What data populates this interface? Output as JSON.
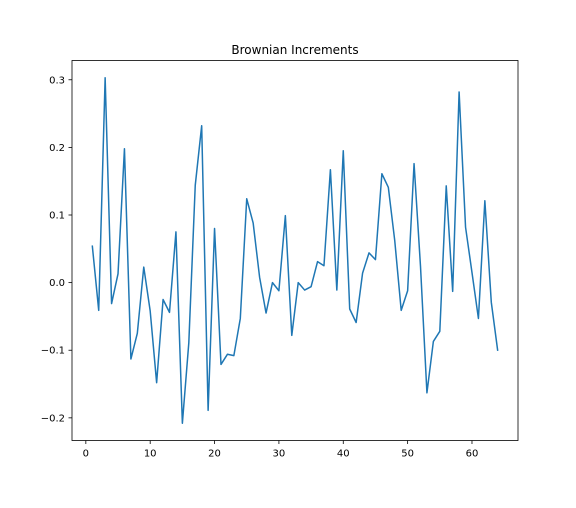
{
  "chart_data": {
    "type": "line",
    "title": "Brownian Increments",
    "xlabel": "",
    "ylabel": "",
    "xlim": [
      -2.15,
      67.15
    ],
    "ylim": [
      -0.2335,
      0.3285
    ],
    "xticks": [
      0,
      10,
      20,
      30,
      40,
      50,
      60
    ],
    "xtick_labels": [
      "0",
      "10",
      "20",
      "30",
      "40",
      "50",
      "60"
    ],
    "yticks": [
      -0.2,
      -0.1,
      0.0,
      0.1,
      0.2,
      0.3
    ],
    "ytick_labels": [
      "−0.2",
      "−0.1",
      "0.0",
      "0.1",
      "0.2",
      "0.3"
    ],
    "grid": false,
    "series": [
      {
        "color": "#1f77b4",
        "x": [
          1,
          2,
          3,
          4,
          5,
          6,
          7,
          8,
          9,
          10,
          11,
          12,
          13,
          14,
          15,
          16,
          17,
          18,
          19,
          20,
          21,
          22,
          23,
          24,
          25,
          26,
          27,
          28,
          29,
          30,
          31,
          32,
          33,
          34,
          35,
          36,
          37,
          38,
          39,
          40,
          41,
          42,
          43,
          44,
          45,
          46,
          47,
          48,
          49,
          50,
          51,
          52,
          53,
          54,
          55,
          56,
          57,
          58,
          59,
          60,
          61,
          62,
          63,
          64
        ],
        "values": [
          0.055,
          -0.041,
          0.303,
          -0.031,
          0.013,
          0.198,
          -0.113,
          -0.075,
          0.023,
          -0.042,
          -0.148,
          -0.025,
          -0.044,
          0.075,
          -0.208,
          -0.089,
          0.144,
          0.232,
          -0.189,
          0.08,
          -0.121,
          -0.106,
          -0.108,
          -0.053,
          0.124,
          0.088,
          0.008,
          -0.045,
          0.0,
          -0.012,
          0.099,
          -0.078,
          0.0,
          -0.011,
          -0.006,
          0.031,
          0.025,
          0.167,
          -0.011,
          0.195,
          -0.039,
          -0.059,
          0.014,
          0.044,
          0.034,
          0.161,
          0.141,
          0.062,
          -0.041,
          -0.012,
          0.176,
          0.024,
          -0.163,
          -0.087,
          -0.072,
          0.143,
          -0.013,
          0.282,
          0.082,
          0.015,
          -0.053,
          0.121,
          -0.029,
          -0.101
        ]
      }
    ]
  }
}
